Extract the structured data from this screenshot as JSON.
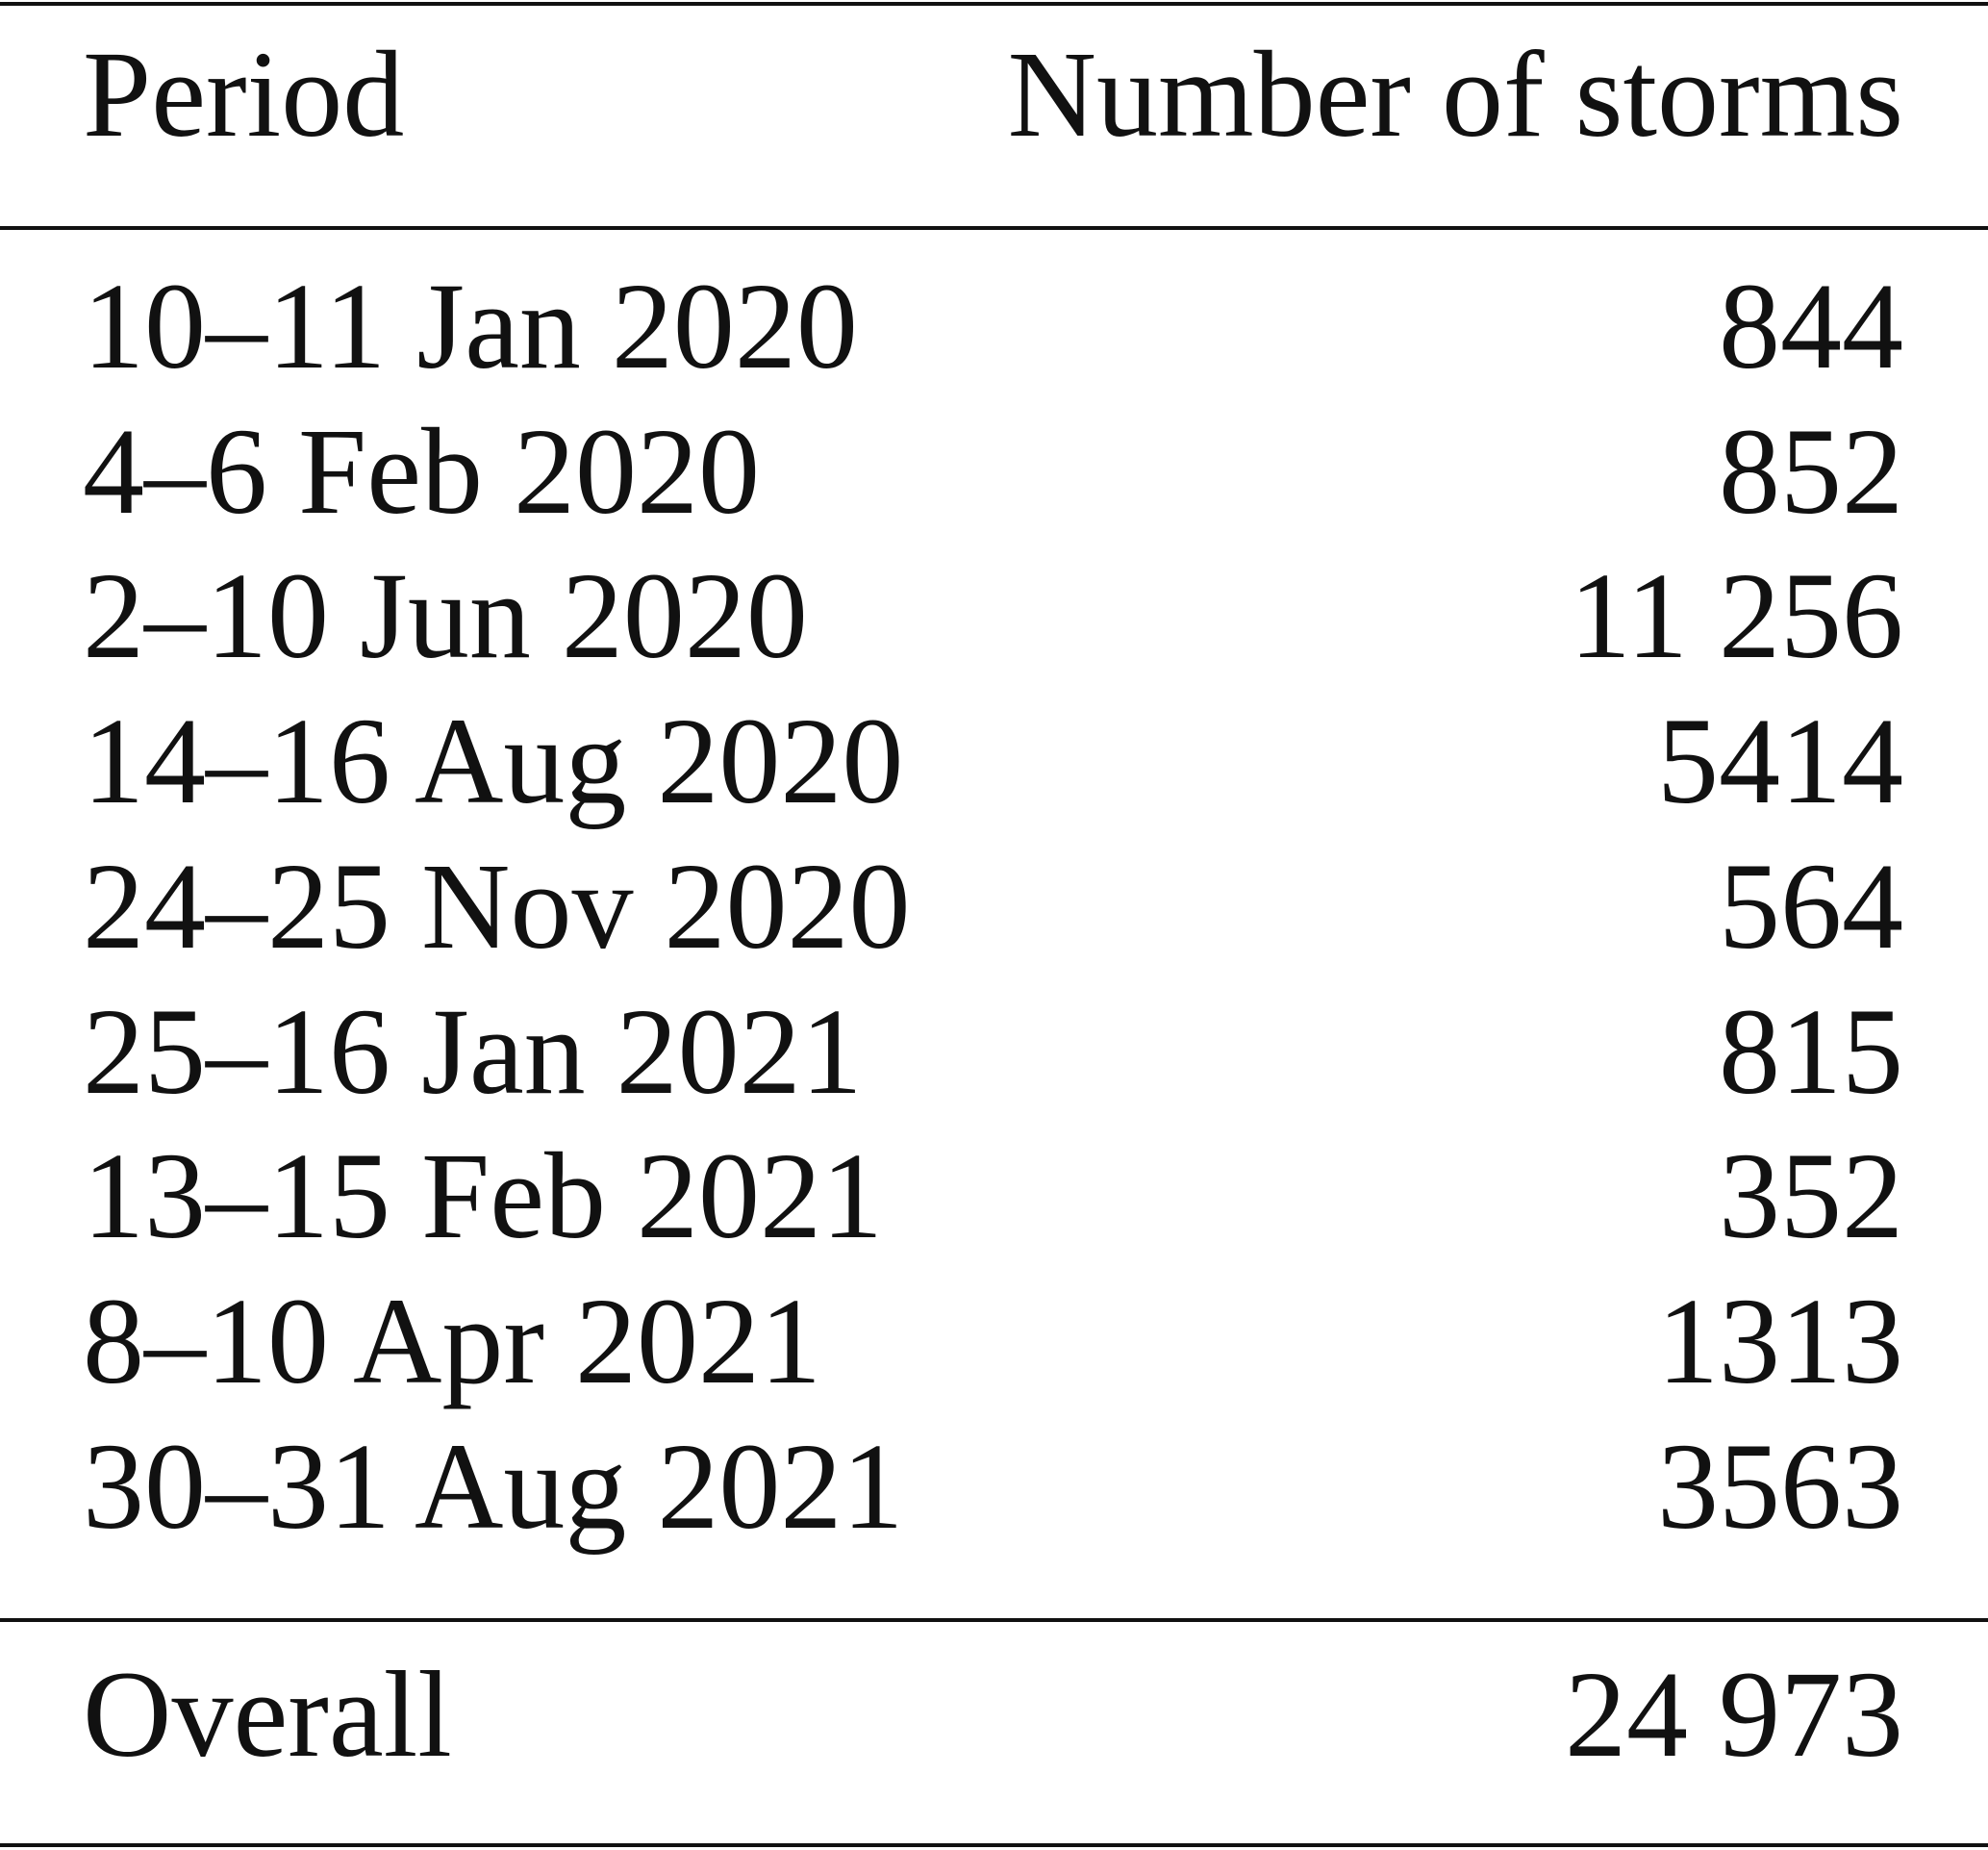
{
  "table": {
    "header": [
      "Period",
      "Number of storms"
    ],
    "rows": [
      [
        "10–11 Jan 2020",
        "844"
      ],
      [
        "4–6 Feb 2020",
        "852"
      ],
      [
        "2–10 Jun 2020",
        "11 256"
      ],
      [
        "14–16 Aug 2020",
        "5414"
      ],
      [
        "24–25 Nov 2020",
        "564"
      ],
      [
        "25–16 Jan 2021",
        "815"
      ],
      [
        "13–15 Feb 2021",
        "352"
      ],
      [
        "8–10 Apr 2021",
        "1313"
      ],
      [
        "30–31 Aug 2021",
        "3563"
      ]
    ],
    "footer": [
      "Overall",
      "24 973"
    ]
  }
}
